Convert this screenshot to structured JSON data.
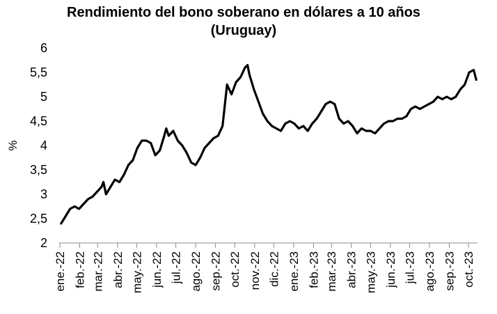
{
  "chart_data": {
    "type": "line",
    "title": "Rendimiento del bono soberano en dólares a 10 años (Uruguay)",
    "xlabel": "",
    "ylabel": "%",
    "ylim": [
      2,
      6
    ],
    "yticks": [
      "2",
      "2,5",
      "3",
      "3,5",
      "4",
      "4,5",
      "5",
      "5,5",
      "6"
    ],
    "grid": false,
    "legend": "none",
    "line_color": "#000000",
    "x_ticks": [
      "ene.-22",
      "feb.-22",
      "mar.-22",
      "abr.-22",
      "may.-22",
      "jun.-22",
      "jul.-22",
      "ago.-22",
      "sep.-22",
      "oct.-22",
      "nov.-22",
      "dic.-22",
      "ene.-23",
      "feb.-23",
      "mar.-23",
      "abr.-23",
      "may.-23",
      "jun.-23",
      "jul.-23",
      "ago.-23",
      "sep.-23",
      "oct.-23"
    ],
    "series": [
      {
        "name": "",
        "x": [
          "2022-01-03",
          "2022-01-10",
          "2022-01-17",
          "2022-01-24",
          "2022-01-31",
          "2022-02-07",
          "2022-02-14",
          "2022-02-21",
          "2022-02-28",
          "2022-03-07",
          "2022-03-10",
          "2022-03-14",
          "2022-03-21",
          "2022-03-28",
          "2022-04-04",
          "2022-04-11",
          "2022-04-18",
          "2022-04-25",
          "2022-05-02",
          "2022-05-09",
          "2022-05-16",
          "2022-05-23",
          "2022-05-30",
          "2022-06-06",
          "2022-06-13",
          "2022-06-16",
          "2022-06-20",
          "2022-06-27",
          "2022-07-04",
          "2022-07-11",
          "2022-07-18",
          "2022-07-25",
          "2022-08-01",
          "2022-08-08",
          "2022-08-15",
          "2022-08-22",
          "2022-08-29",
          "2022-09-05",
          "2022-09-12",
          "2022-09-19",
          "2022-09-26",
          "2022-10-03",
          "2022-10-10",
          "2022-10-17",
          "2022-10-21",
          "2022-10-24",
          "2022-10-31",
          "2022-11-07",
          "2022-11-14",
          "2022-11-21",
          "2022-11-28",
          "2022-12-05",
          "2022-12-12",
          "2022-12-19",
          "2022-12-26",
          "2023-01-02",
          "2023-01-09",
          "2023-01-16",
          "2023-01-23",
          "2023-01-30",
          "2023-02-06",
          "2023-02-13",
          "2023-02-20",
          "2023-02-27",
          "2023-03-06",
          "2023-03-13",
          "2023-03-20",
          "2023-03-27",
          "2023-04-03",
          "2023-04-10",
          "2023-04-17",
          "2023-04-24",
          "2023-05-01",
          "2023-05-08",
          "2023-05-15",
          "2023-05-22",
          "2023-05-29",
          "2023-06-05",
          "2023-06-12",
          "2023-06-19",
          "2023-06-26",
          "2023-07-03",
          "2023-07-10",
          "2023-07-17",
          "2023-07-24",
          "2023-07-31",
          "2023-08-07",
          "2023-08-14",
          "2023-08-21",
          "2023-08-28",
          "2023-09-04",
          "2023-09-11",
          "2023-09-18",
          "2023-09-25",
          "2023-10-02",
          "2023-10-09",
          "2023-10-13"
        ],
        "values": [
          2.4,
          2.55,
          2.7,
          2.75,
          2.7,
          2.8,
          2.9,
          2.95,
          3.05,
          3.15,
          3.25,
          3.0,
          3.15,
          3.3,
          3.25,
          3.4,
          3.6,
          3.7,
          3.95,
          4.1,
          4.1,
          4.05,
          3.8,
          3.9,
          4.2,
          4.35,
          4.2,
          4.3,
          4.1,
          4.0,
          3.85,
          3.65,
          3.6,
          3.75,
          3.95,
          4.05,
          4.15,
          4.2,
          4.4,
          5.25,
          5.05,
          5.3,
          5.4,
          5.6,
          5.65,
          5.45,
          5.15,
          4.9,
          4.65,
          4.5,
          4.4,
          4.35,
          4.3,
          4.45,
          4.5,
          4.45,
          4.35,
          4.4,
          4.3,
          4.45,
          4.55,
          4.7,
          4.85,
          4.9,
          4.85,
          4.55,
          4.45,
          4.5,
          4.4,
          4.25,
          4.35,
          4.3,
          4.3,
          4.25,
          4.35,
          4.45,
          4.5,
          4.5,
          4.55,
          4.55,
          4.6,
          4.75,
          4.8,
          4.75,
          4.8,
          4.85,
          4.9,
          5.0,
          4.95,
          5.0,
          4.95,
          5.0,
          5.15,
          5.25,
          5.5,
          5.55,
          5.35
        ]
      }
    ]
  }
}
